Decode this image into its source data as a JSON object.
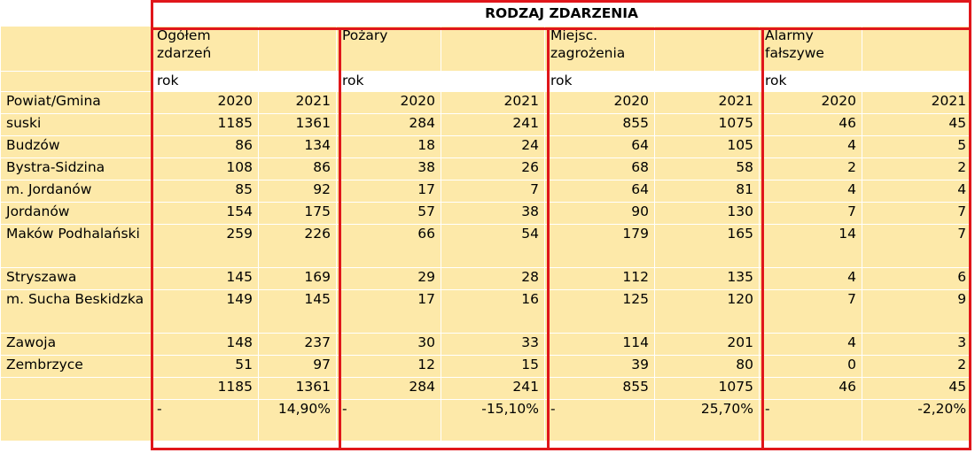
{
  "title": "RODZAJ ZDARZENIA",
  "categories": [
    {
      "label": "Ogółem zdarzeń",
      "unit": "rok"
    },
    {
      "label": "Pożary",
      "unit": "rok"
    },
    {
      "label": "Miejsc. zagrożenia",
      "unit": "rok"
    },
    {
      "label": "Alarmy fałszywe",
      "unit": "rok"
    }
  ],
  "row_header": "Powiat/Gmina",
  "years": [
    "2020",
    "2021",
    "2020",
    "2021",
    "2020",
    "2021",
    "2020",
    "2021"
  ],
  "rows": [
    {
      "name": "suski",
      "values": [
        "1185",
        "1361",
        "284",
        "241",
        "855",
        "1075",
        "46",
        "45"
      ]
    },
    {
      "name": "Budzów",
      "values": [
        "86",
        "134",
        "18",
        "24",
        "64",
        "105",
        "4",
        "5"
      ]
    },
    {
      "name": "Bystra-Sidzina",
      "values": [
        "108",
        "86",
        "38",
        "26",
        "68",
        "58",
        "2",
        "2"
      ]
    },
    {
      "name": "m. Jordanów",
      "values": [
        "85",
        "92",
        "17",
        "7",
        "64",
        "81",
        "4",
        "4"
      ]
    },
    {
      "name": "Jordanów",
      "values": [
        "154",
        "175",
        "57",
        "38",
        "90",
        "130",
        "7",
        "7"
      ]
    },
    {
      "name": "Maków Podhalański",
      "values": [
        "259",
        "226",
        "66",
        "54",
        "179",
        "165",
        "14",
        "7"
      ]
    },
    {
      "name": "Stryszawa",
      "values": [
        "145",
        "169",
        "29",
        "28",
        "112",
        "135",
        "4",
        "6"
      ]
    },
    {
      "name": "m. Sucha Beskidzka",
      "values": [
        "149",
        "145",
        "17",
        "16",
        "125",
        "120",
        "7",
        "9"
      ]
    },
    {
      "name": "Zawoja",
      "values": [
        "148",
        "237",
        "30",
        "33",
        "114",
        "201",
        "4",
        "3"
      ]
    },
    {
      "name": "Zembrzyce",
      "values": [
        "51",
        "97",
        "12",
        "15",
        "39",
        "80",
        "0",
        "2"
      ]
    }
  ],
  "totals": [
    "1185",
    "1361",
    "284",
    "241",
    "855",
    "1075",
    "46",
    "45"
  ],
  "percent_row": [
    {
      "dash": "-",
      "pct": "14,90%"
    },
    {
      "dash": "-",
      "pct": "-15,10%"
    },
    {
      "dash": "-",
      "pct": "25,70%"
    },
    {
      "dash": "-",
      "pct": "-2,20%"
    }
  ],
  "colors": {
    "cell_fill": "#fde9a9",
    "frame_red": "#e0161b"
  }
}
